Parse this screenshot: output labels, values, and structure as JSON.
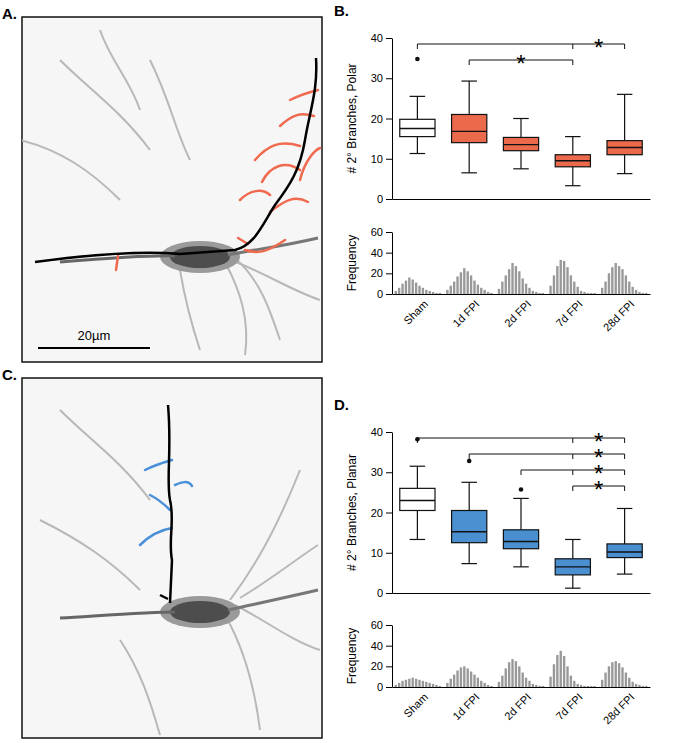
{
  "images": [
    {
      "label": "A.",
      "scale_bar": "20µm"
    },
    {
      "label": "C."
    }
  ],
  "chart_data": [
    {
      "type": "box",
      "panel": "B.",
      "y_label": "# 2° Branches, Polar",
      "categories": [
        "Sham",
        "1d FPI",
        "2d FPI",
        "7d FPI",
        "28d FPI"
      ],
      "colors": [
        "#ffffff",
        "#ec6a4c",
        "#ec6a4c",
        "#ec6a4c",
        "#ec6a4c"
      ],
      "ylim": [
        0,
        40
      ],
      "yticks": [
        0,
        10,
        20,
        30,
        40
      ],
      "tick_labels": "y",
      "boxes": [
        {
          "min": 11.3,
          "q1": 15.5,
          "median": 17.5,
          "q3": 19.8,
          "max": 25.5,
          "outliers": [
            34.8
          ]
        },
        {
          "min": 6.5,
          "q1": 14,
          "median": 16.8,
          "q3": 21,
          "max": 29.3,
          "outliers": []
        },
        {
          "min": 7.5,
          "q1": 12,
          "median": 13.5,
          "q3": 15.3,
          "max": 20,
          "outliers": []
        },
        {
          "min": 3.3,
          "q1": 8,
          "median": 9.5,
          "q3": 11,
          "max": 15.5,
          "outliers": []
        },
        {
          "min": 6.3,
          "q1": 11,
          "median": 12.8,
          "q3": 14.5,
          "max": 26,
          "outliers": []
        }
      ],
      "annotations": [
        {
          "from": 0,
          "to": [
            3,
            4
          ],
          "label": "*"
        },
        {
          "from": 1,
          "to": [
            3
          ],
          "label": "*"
        }
      ],
      "histogram": {
        "type": "bar",
        "y_label": "Frequency",
        "ylim": [
          0,
          60
        ],
        "yticks": [
          0,
          20,
          40,
          60
        ],
        "color": "#999999",
        "counts": [
          [
            3,
            6,
            10,
            13,
            16,
            14,
            11,
            8,
            6,
            4,
            3,
            2,
            1,
            1
          ],
          [
            4,
            8,
            12,
            17,
            21,
            25,
            22,
            18,
            13,
            9,
            6,
            4,
            2,
            1
          ],
          [
            5,
            12,
            18,
            24,
            30,
            27,
            22,
            15,
            10,
            6,
            3,
            2,
            1,
            1
          ],
          [
            8,
            18,
            27,
            33,
            32,
            26,
            18,
            12,
            7,
            3,
            2,
            1,
            1,
            1
          ],
          [
            6,
            12,
            20,
            26,
            30,
            27,
            24,
            18,
            12,
            7,
            4,
            2,
            1,
            1
          ]
        ]
      }
    },
    {
      "type": "box",
      "panel": "D.",
      "y_label": "# 2° Branches, Planar",
      "categories": [
        "Sham",
        "1d FPI",
        "2d FPI",
        "7d FPI",
        "28d FPI"
      ],
      "colors": [
        "#ffffff",
        "#4a8fd0",
        "#4a8fd0",
        "#4a8fd0",
        "#4a8fd0"
      ],
      "ylim": [
        0,
        40
      ],
      "yticks": [
        0,
        10,
        20,
        30,
        40
      ],
      "tick_labels": "y",
      "boxes": [
        {
          "min": 13.3,
          "q1": 20.5,
          "median": 23,
          "q3": 26,
          "max": 31.5,
          "outliers": [
            38.2
          ]
        },
        {
          "min": 7.3,
          "q1": 12.5,
          "median": 15.2,
          "q3": 20.5,
          "max": 27.5,
          "outliers": [
            32.8
          ]
        },
        {
          "min": 6.5,
          "q1": 11,
          "median": 12.8,
          "q3": 15.7,
          "max": 23.5,
          "outliers": [
            25.7
          ]
        },
        {
          "min": 1.2,
          "q1": 4.5,
          "median": 6.5,
          "q3": 8.5,
          "max": 13.3,
          "outliers": []
        },
        {
          "min": 4.7,
          "q1": 8.8,
          "median": 10.2,
          "q3": 12.2,
          "max": 21,
          "outliers": []
        }
      ],
      "annotations": [
        {
          "from": 0,
          "to": [
            3,
            4
          ],
          "label": "*"
        },
        {
          "from": 1,
          "to": [
            3,
            4
          ],
          "label": "*"
        },
        {
          "from": 2,
          "to": [
            3,
            4
          ],
          "label": "*"
        },
        {
          "from": 3,
          "to": [
            4
          ],
          "label": "*"
        }
      ],
      "histogram": {
        "type": "bar",
        "y_label": "Frequency",
        "ylim": [
          0,
          60
        ],
        "yticks": [
          0,
          20,
          40,
          60
        ],
        "color": "#999999",
        "counts": [
          [
            2,
            4,
            6,
            7,
            8,
            9,
            8,
            7,
            6,
            5,
            4,
            3,
            2,
            1
          ],
          [
            4,
            8,
            12,
            16,
            19,
            20,
            18,
            15,
            12,
            9,
            6,
            4,
            2,
            1
          ],
          [
            5,
            11,
            18,
            24,
            27,
            25,
            20,
            14,
            9,
            6,
            3,
            2,
            1,
            1
          ],
          [
            10,
            22,
            31,
            35,
            30,
            20,
            11,
            6,
            3,
            2,
            1,
            1,
            1,
            1
          ],
          [
            7,
            14,
            20,
            24,
            25,
            23,
            19,
            14,
            9,
            5,
            3,
            2,
            1,
            1
          ]
        ]
      }
    }
  ]
}
